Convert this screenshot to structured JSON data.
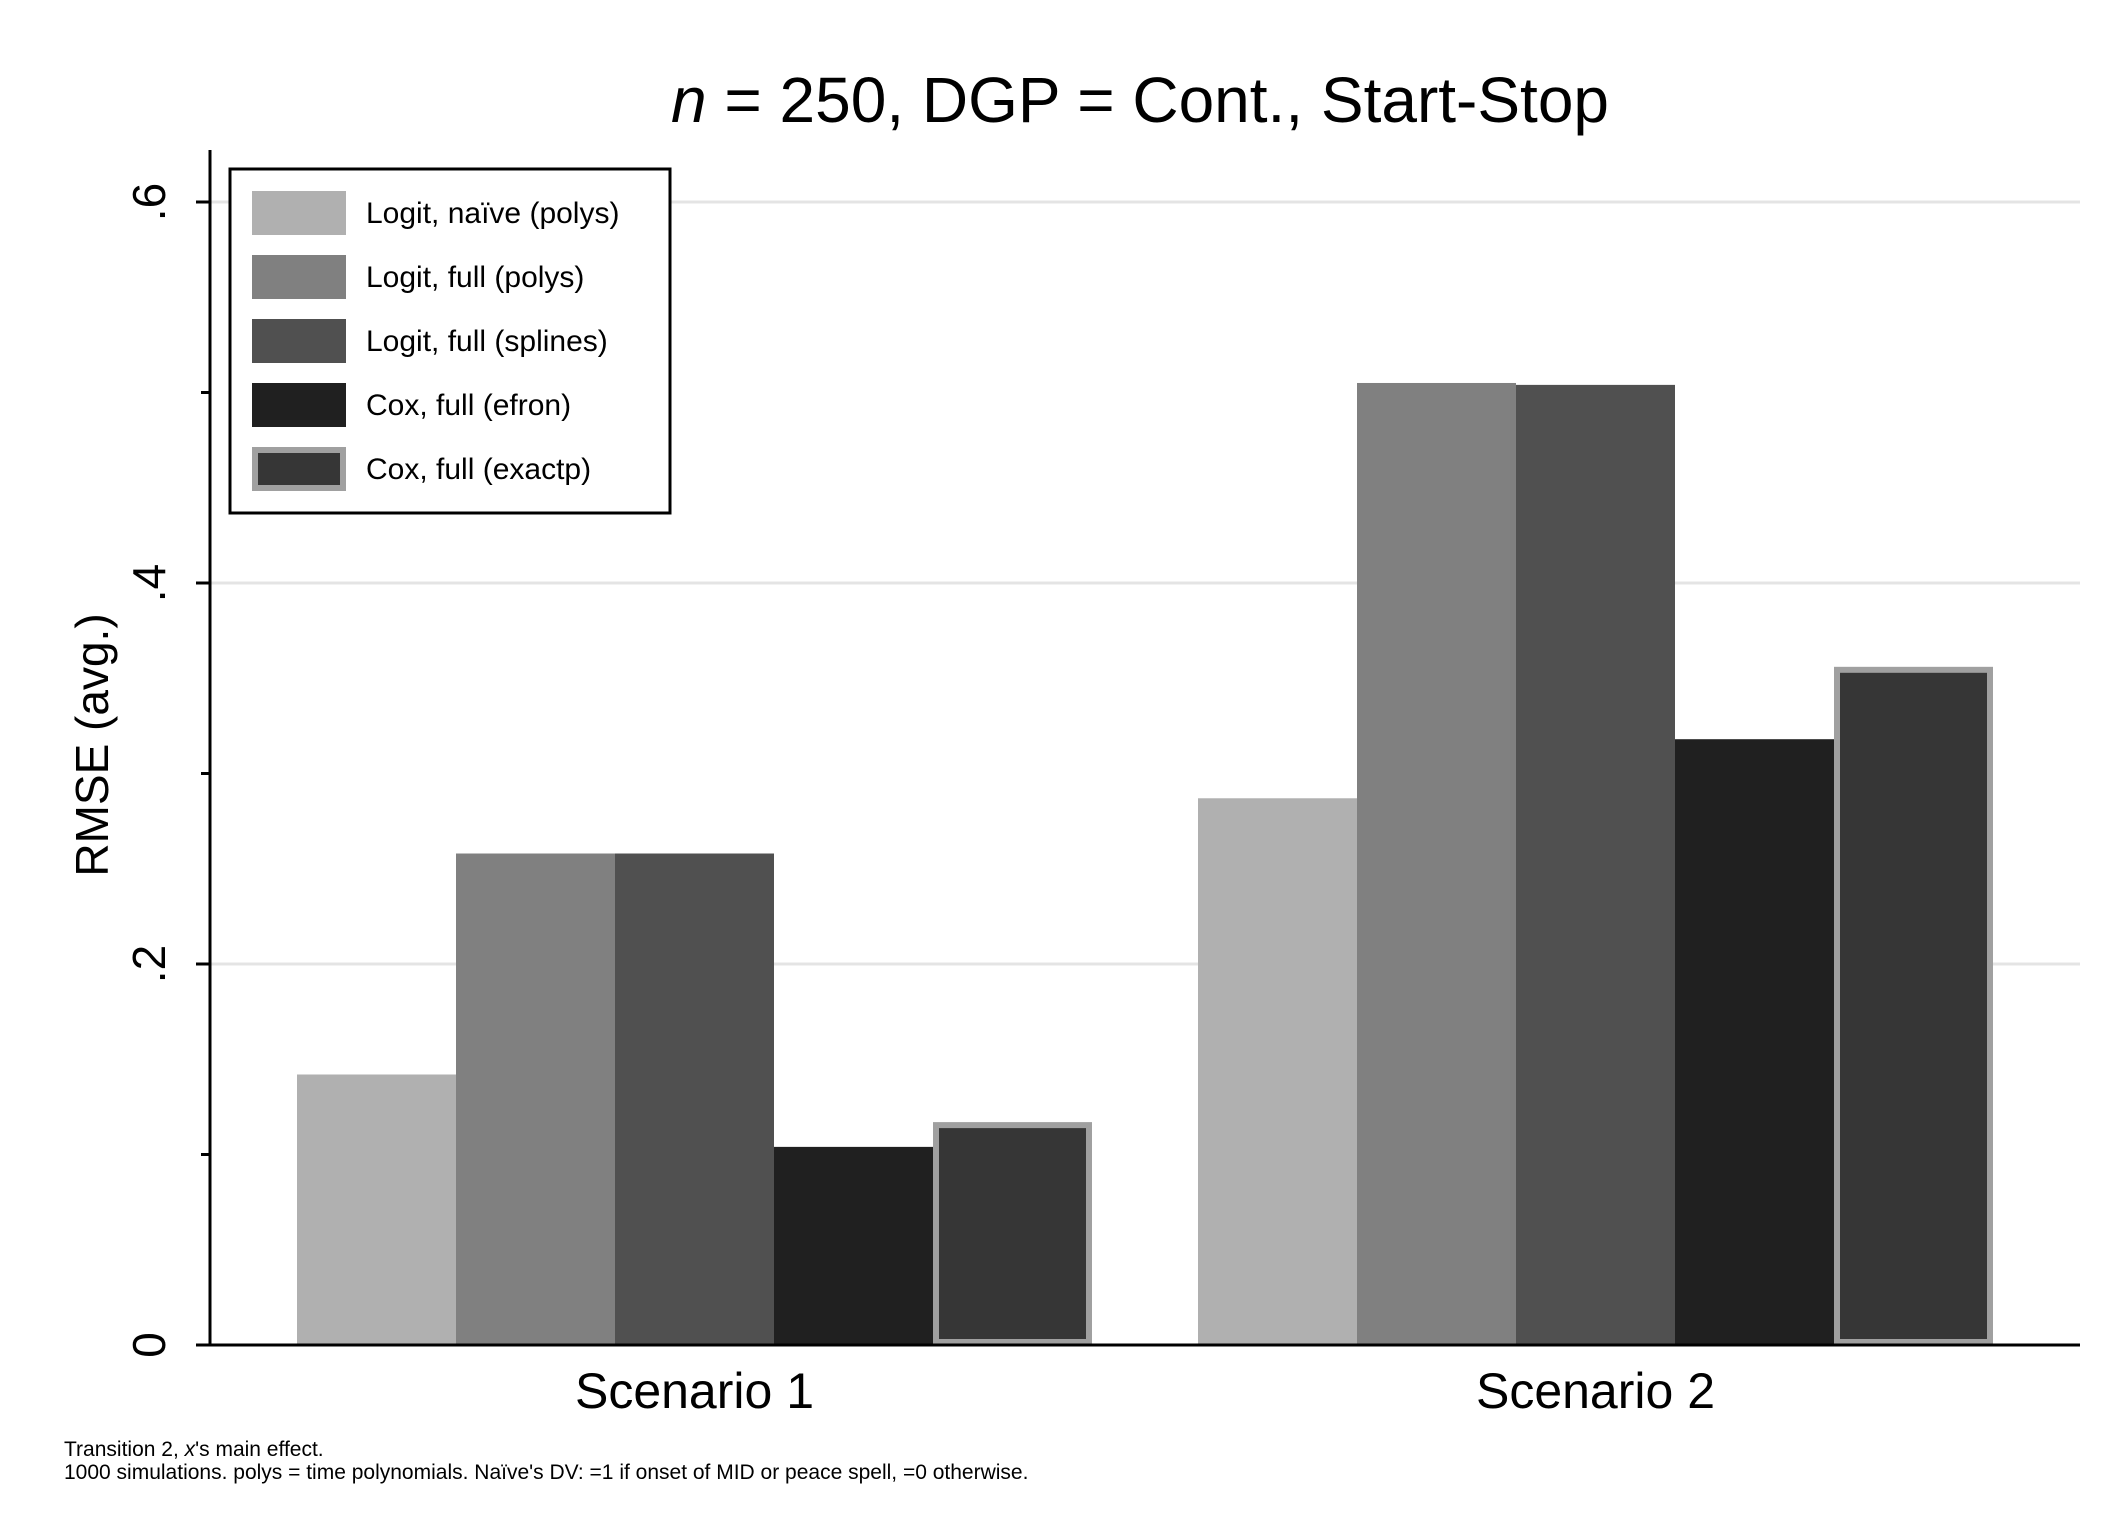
{
  "chart_data": {
    "type": "bar",
    "title_prefix": "n",
    "title_rest": " = 250, DGP = Cont., Start-Stop",
    "xlabel": "",
    "ylabel": "RMSE (avg.)",
    "ylim": [
      0,
      0.6
    ],
    "yticks": [
      {
        "value": 0,
        "label": "0"
      },
      {
        "value": 0.2,
        "label": ".2"
      },
      {
        "value": 0.4,
        "label": ".4"
      },
      {
        "value": 0.6,
        "label": ".6"
      }
    ],
    "minor_ticks": [
      0.1,
      0.3,
      0.5
    ],
    "grid": true,
    "legend_position": "top-left",
    "categories": [
      "Scenario 1",
      "Scenario 2"
    ],
    "series": [
      {
        "name": "Logit, naïve (polys)",
        "color": "#b0b0b0",
        "outline": "",
        "values": [
          0.142,
          0.287
        ]
      },
      {
        "name": "Logit, full (polys)",
        "color": "#808080",
        "outline": "",
        "values": [
          0.258,
          0.505
        ]
      },
      {
        "name": "Logit, full (splines)",
        "color": "#505050",
        "outline": "",
        "values": [
          0.258,
          0.504
        ]
      },
      {
        "name": "Cox, full (efron)",
        "color": "#202020",
        "outline": "",
        "values": [
          0.104,
          0.318
        ]
      },
      {
        "name": "Cox, full (exactp)",
        "color": "#363636",
        "outline": "#a0a0a0",
        "values": [
          0.117,
          0.356
        ]
      }
    ],
    "notes": {
      "line1_prefix": "Transition 2, ",
      "line1_italic": "x",
      "line1_suffix": "'s main effect.",
      "line2": "1000 simulations.  polys = time polynomials.  Naïve's DV: =1 if onset of MID or peace spell, =0 otherwise."
    }
  }
}
